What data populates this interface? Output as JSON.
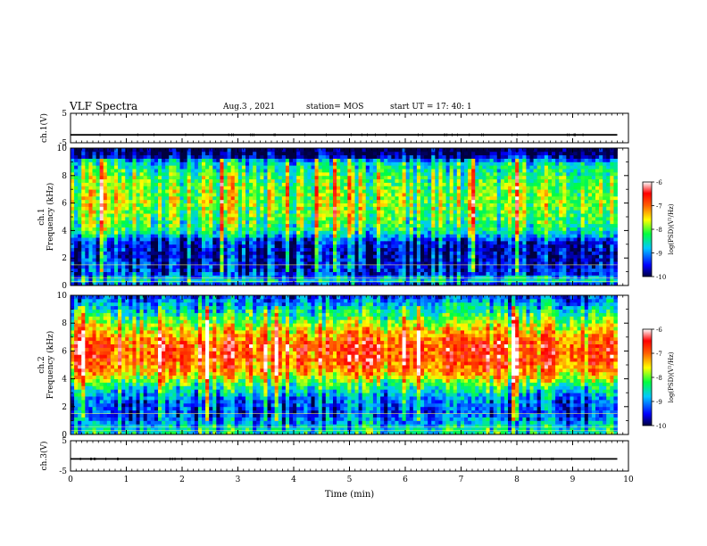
{
  "header": {
    "title": "VLF Spectra",
    "date": "Aug.3  , 2021",
    "station": "station= MOS",
    "start": "start  UT =   17: 40: 1"
  },
  "chart_data": {
    "type": "heatmap",
    "title": "VLF Spectra",
    "xlabel": "Time  (min)",
    "xlim": [
      0,
      10
    ],
    "x_ticks": [
      0,
      1,
      2,
      3,
      4,
      5,
      6,
      7,
      8,
      9,
      10
    ],
    "panels": [
      {
        "name": "ch.1(V)",
        "kind": "waveform",
        "ylabel": "ch.1(V)",
        "ylim": [
          -5,
          5
        ],
        "y_ticks": [
          5,
          -5
        ],
        "baseline": -2.3,
        "end_x": 9.8
      },
      {
        "name": "ch.1",
        "kind": "spectrogram",
        "ylabel": "Frequency  (kHz)",
        "ylabel_prefix": "ch.1",
        "ylim": [
          0,
          10
        ],
        "y_ticks": [
          0,
          2,
          4,
          6,
          8,
          10
        ],
        "end_x": 9.8,
        "colorbar": {
          "label": "log(PSD)(V²/Hz)",
          "range": [
            -10,
            -6
          ],
          "ticks": [
            -6,
            -7,
            -8,
            -9,
            -10
          ]
        },
        "band_profile": [
          {
            "f": 0.0,
            "v": -9.6
          },
          {
            "f": 0.5,
            "v": -8.2
          },
          {
            "f": 0.7,
            "v": -9.2
          },
          {
            "f": 1.5,
            "v": -9.5
          },
          {
            "f": 2.5,
            "v": -9.6
          },
          {
            "f": 3.2,
            "v": -9.4
          },
          {
            "f": 4.0,
            "v": -8.3
          },
          {
            "f": 5.0,
            "v": -8.0
          },
          {
            "f": 6.0,
            "v": -7.8
          },
          {
            "f": 7.0,
            "v": -7.9
          },
          {
            "f": 8.0,
            "v": -8.1
          },
          {
            "f": 9.0,
            "v": -8.6
          },
          {
            "f": 9.5,
            "v": -9.9
          },
          {
            "f": 10.0,
            "v": -10.0
          }
        ]
      },
      {
        "name": "ch.2",
        "kind": "spectrogram",
        "ylabel": "Frequency  (kHz)",
        "ylabel_prefix": "ch.2",
        "ylim": [
          0,
          10
        ],
        "y_ticks": [
          0,
          2,
          4,
          6,
          8,
          10
        ],
        "end_x": 9.8,
        "colorbar": {
          "label": "log(PSD)(V²/Hz)",
          "range": [
            -10,
            -6
          ],
          "ticks": [
            -6,
            -7,
            -8,
            -9,
            -10
          ]
        },
        "band_profile": [
          {
            "f": 0.0,
            "v": -8.4
          },
          {
            "f": 0.5,
            "v": -8.6
          },
          {
            "f": 1.5,
            "v": -9.3
          },
          {
            "f": 2.5,
            "v": -9.1
          },
          {
            "f": 3.5,
            "v": -8.3
          },
          {
            "f": 4.5,
            "v": -7.2
          },
          {
            "f": 5.5,
            "v": -6.8
          },
          {
            "f": 6.5,
            "v": -6.8
          },
          {
            "f": 7.5,
            "v": -7.4
          },
          {
            "f": 8.5,
            "v": -8.2
          },
          {
            "f": 9.5,
            "v": -8.9
          },
          {
            "f": 10.0,
            "v": -9.3
          }
        ]
      },
      {
        "name": "ch.3(V)",
        "kind": "waveform",
        "ylabel": "ch.3(V)",
        "ylim": [
          -5,
          5
        ],
        "y_ticks": [
          5,
          -5
        ],
        "baseline": -1.0,
        "end_x": 9.8
      }
    ]
  },
  "colors": {
    "axis": "#000000",
    "background": "#ffffff"
  }
}
